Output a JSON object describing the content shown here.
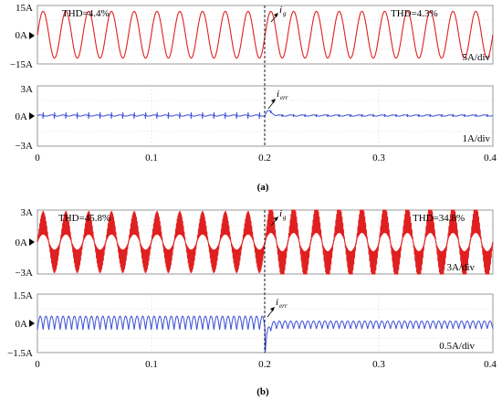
{
  "chart_data": [
    {
      "type": "line",
      "panel": "(a)",
      "x_ticks": [
        "0",
        "0.1",
        "0.2",
        "0.3",
        "0.4"
      ],
      "xlim": [
        0,
        0.4
      ],
      "divider_x": 0.2,
      "subplots": [
        {
          "y_ticks": [
            "15A",
            "0A",
            "−15A"
          ],
          "ylim": [
            -15,
            15
          ],
          "scale_label": "5A/div",
          "annotations": {
            "thd_before": "THD=4.4%",
            "thd_after": "THD=4.3%"
          },
          "signal_symbol": "i",
          "signal_subscript": "g",
          "series": [
            {
              "color": "#e02020",
              "waveform": "sine",
              "frequency_hz": 50,
              "amplitude_before": 12,
              "amplitude_after": 12,
              "harmonic_distortion": "low"
            }
          ]
        },
        {
          "y_ticks": [
            "3A",
            "0A",
            "−3A"
          ],
          "ylim": [
            -3,
            3
          ],
          "scale_label": "1A/div",
          "signal_symbol": "i",
          "signal_subscript": "err",
          "series": [
            {
              "color": "#3a4fd8",
              "waveform": "error",
              "baseline": 0.05,
              "spike_amplitude_before": 0.35,
              "transient_peak_at_switch": 1.0,
              "spike_amplitude_after": 0.15
            }
          ]
        }
      ]
    },
    {
      "type": "line",
      "panel": "(b)",
      "x_ticks": [
        "0",
        "0.1",
        "0.2",
        "0.3",
        "0.4"
      ],
      "xlim": [
        0,
        0.4
      ],
      "divider_x": 0.2,
      "subplots": [
        {
          "y_ticks": [
            "3A",
            "0A",
            "−3A"
          ],
          "ylim": [
            -3,
            3
          ],
          "scale_label": "3A/div",
          "annotations": {
            "thd_before": "THD=45.8%",
            "thd_after": "THD=34.8%"
          },
          "signal_symbol": "i",
          "signal_subscript": "g",
          "series": [
            {
              "color": "#e02020",
              "waveform": "distorted-sine",
              "frequency_hz": 50,
              "amplitude_before": 2.0,
              "amplitude_after": 2.4,
              "harmonic_distortion": "high"
            }
          ]
        },
        {
          "y_ticks": [
            "1.5A",
            "0A",
            "−1.5A"
          ],
          "ylim": [
            -1.5,
            1.5
          ],
          "scale_label": "0.5A/div",
          "signal_symbol": "i",
          "signal_subscript": "err",
          "series": [
            {
              "color": "#3a4fd8",
              "waveform": "error",
              "ripple_amplitude_before": 0.35,
              "transient_peak_at_switch": -1.3,
              "ripple_amplitude_after": 0.2
            }
          ]
        }
      ]
    }
  ],
  "captions": [
    "(a)",
    "(b)"
  ]
}
